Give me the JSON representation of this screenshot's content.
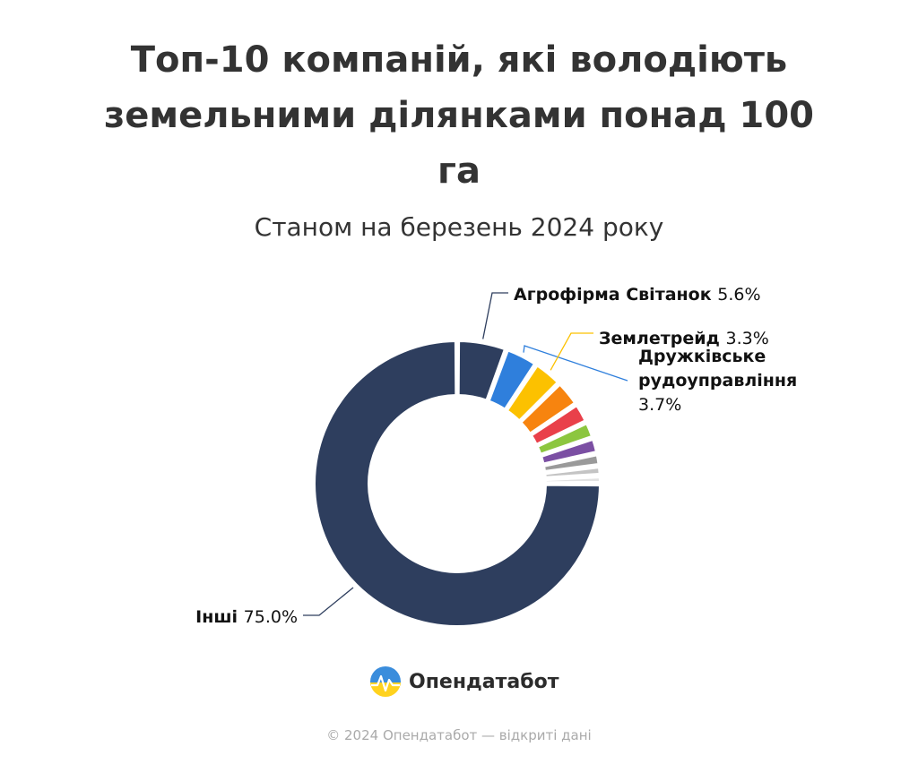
{
  "chart_data": {
    "type": "pie",
    "donut": true,
    "title": "Топ-10 компаній, які володіють земельними ділянками понад 100 га",
    "subtitle": "Станом на березень 2024 року",
    "slices": [
      {
        "label": "Агрофірма Світанок",
        "value": 5.6,
        "value_label": "5.6%",
        "color": "#2e3e5e"
      },
      {
        "label": "Дружківське рудоуправління",
        "value": 3.7,
        "value_label": "3.7%",
        "color": "#2f7fdc"
      },
      {
        "label": "Землетрейд",
        "value": 3.3,
        "value_label": "3.3%",
        "color": "#fcc100"
      },
      {
        "label": "",
        "value": 3.0,
        "color": "#f7840f"
      },
      {
        "label": "",
        "value": 2.3,
        "color": "#e9404a"
      },
      {
        "label": "",
        "value": 1.9,
        "color": "#8cc63f"
      },
      {
        "label": "",
        "value": 1.8,
        "color": "#7b4fa3"
      },
      {
        "label": "",
        "value": 1.4,
        "color": "#9a9a9a"
      },
      {
        "label": "",
        "value": 1.1,
        "color": "#c4c4c4"
      },
      {
        "label": "",
        "value": 0.9,
        "color": "#e2e2e2"
      },
      {
        "label": "Інші",
        "value": 75.0,
        "value_label": "75.0%",
        "color": "#2e3e5e"
      }
    ],
    "legend": "none"
  },
  "brand": {
    "name": "Опендатабот",
    "logo_icon": "opendatabot-logo-icon"
  },
  "footer": "© 2024 Опендатабот — відкриті дані"
}
